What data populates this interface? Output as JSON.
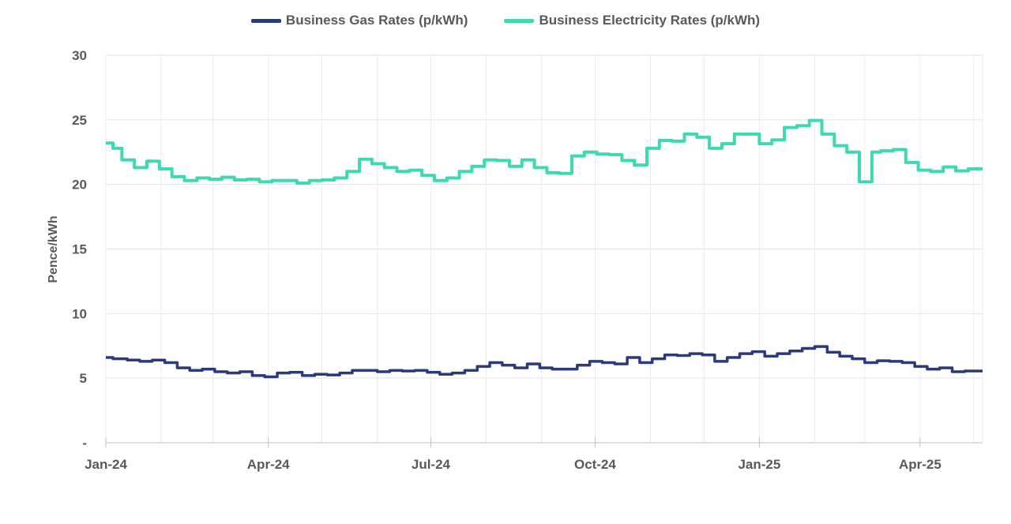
{
  "chart_data": {
    "type": "line",
    "ylabel": "Pence/kWh",
    "ylim": [
      0,
      30
    ],
    "yticks": [
      0,
      5,
      10,
      15,
      20,
      25,
      30
    ],
    "ytick_labels": [
      "-",
      "5",
      "10",
      "15",
      "20",
      "25",
      "30"
    ],
    "x_start": "2024-01-01",
    "x_end": "2025-05-06",
    "xticks": [
      {
        "date": "2024-01-01",
        "label": "Jan-24"
      },
      {
        "date": "2024-04-01",
        "label": "Apr-24"
      },
      {
        "date": "2024-07-01",
        "label": "Jul-24"
      },
      {
        "date": "2024-10-01",
        "label": "Oct-24"
      },
      {
        "date": "2025-01-01",
        "label": "Jan-25"
      },
      {
        "date": "2025-04-01",
        "label": "Apr-25"
      }
    ],
    "grid": "both",
    "legend_position": "top-center",
    "series": [
      {
        "name": "Business Gas Rates (p/kWh)",
        "color": "#2b3a7a",
        "x": [
          "2024-01-01",
          "2024-01-05",
          "2024-01-13",
          "2024-01-20",
          "2024-01-27",
          "2024-02-03",
          "2024-02-10",
          "2024-02-17",
          "2024-02-24",
          "2024-03-02",
          "2024-03-09",
          "2024-03-16",
          "2024-03-23",
          "2024-03-30",
          "2024-04-06",
          "2024-04-13",
          "2024-04-20",
          "2024-04-27",
          "2024-05-04",
          "2024-05-11",
          "2024-05-18",
          "2024-05-25",
          "2024-06-01",
          "2024-06-08",
          "2024-06-15",
          "2024-06-22",
          "2024-06-29",
          "2024-07-06",
          "2024-07-13",
          "2024-07-20",
          "2024-07-27",
          "2024-08-03",
          "2024-08-10",
          "2024-08-17",
          "2024-08-24",
          "2024-08-31",
          "2024-09-07",
          "2024-09-14",
          "2024-09-21",
          "2024-09-28",
          "2024-10-05",
          "2024-10-12",
          "2024-10-19",
          "2024-10-26",
          "2024-11-02",
          "2024-11-09",
          "2024-11-16",
          "2024-11-23",
          "2024-11-30",
          "2024-12-07",
          "2024-12-14",
          "2024-12-21",
          "2024-12-28",
          "2025-01-04",
          "2025-01-11",
          "2025-01-18",
          "2025-01-25",
          "2025-02-01",
          "2025-02-08",
          "2025-02-15",
          "2025-02-22",
          "2025-03-01",
          "2025-03-08",
          "2025-03-15",
          "2025-03-22",
          "2025-03-29",
          "2025-04-05",
          "2025-04-12",
          "2025-04-19",
          "2025-04-26",
          "2025-05-03",
          "2025-05-06"
        ],
        "values": [
          6.6,
          6.5,
          6.4,
          6.3,
          6.4,
          6.2,
          5.8,
          5.6,
          5.7,
          5.5,
          5.4,
          5.5,
          5.2,
          5.1,
          5.4,
          5.45,
          5.2,
          5.3,
          5.25,
          5.4,
          5.6,
          5.6,
          5.5,
          5.6,
          5.55,
          5.6,
          5.45,
          5.3,
          5.4,
          5.6,
          5.9,
          6.2,
          6.0,
          5.8,
          6.1,
          5.8,
          5.7,
          5.7,
          6.0,
          6.3,
          6.2,
          6.1,
          6.6,
          6.2,
          6.5,
          6.8,
          6.75,
          6.9,
          6.8,
          6.3,
          6.6,
          6.9,
          7.05,
          6.7,
          6.9,
          7.1,
          7.3,
          7.45,
          7.0,
          6.7,
          6.5,
          6.2,
          6.35,
          6.3,
          6.2,
          5.9,
          5.7,
          5.8,
          5.5,
          5.55,
          5.55,
          5.55
        ]
      },
      {
        "name": "Business Electricity Rates (p/kWh)",
        "color": "#3dd9b3",
        "x": [
          "2024-01-01",
          "2024-01-05",
          "2024-01-10",
          "2024-01-17",
          "2024-01-24",
          "2024-01-31",
          "2024-02-07",
          "2024-02-14",
          "2024-02-21",
          "2024-02-28",
          "2024-03-06",
          "2024-03-13",
          "2024-03-20",
          "2024-03-27",
          "2024-04-03",
          "2024-04-10",
          "2024-04-17",
          "2024-04-24",
          "2024-05-01",
          "2024-05-08",
          "2024-05-15",
          "2024-05-22",
          "2024-05-29",
          "2024-06-05",
          "2024-06-12",
          "2024-06-19",
          "2024-06-26",
          "2024-07-03",
          "2024-07-10",
          "2024-07-17",
          "2024-07-24",
          "2024-07-31",
          "2024-08-07",
          "2024-08-14",
          "2024-08-21",
          "2024-08-28",
          "2024-09-04",
          "2024-09-11",
          "2024-09-18",
          "2024-09-25",
          "2024-10-02",
          "2024-10-09",
          "2024-10-16",
          "2024-10-23",
          "2024-10-30",
          "2024-11-06",
          "2024-11-13",
          "2024-11-20",
          "2024-11-27",
          "2024-12-04",
          "2024-12-11",
          "2024-12-18",
          "2024-12-25",
          "2025-01-01",
          "2025-01-08",
          "2025-01-15",
          "2025-01-22",
          "2025-01-29",
          "2025-02-05",
          "2025-02-12",
          "2025-02-19",
          "2025-02-26",
          "2025-03-05",
          "2025-03-10",
          "2025-03-17",
          "2025-03-24",
          "2025-03-31",
          "2025-04-07",
          "2025-04-14",
          "2025-04-21",
          "2025-04-28",
          "2025-05-06"
        ],
        "values": [
          23.2,
          22.8,
          21.9,
          21.3,
          21.8,
          21.2,
          20.6,
          20.3,
          20.5,
          20.4,
          20.55,
          20.35,
          20.4,
          20.2,
          20.3,
          20.3,
          20.1,
          20.3,
          20.35,
          20.5,
          21.0,
          21.95,
          21.6,
          21.3,
          21.0,
          21.1,
          20.7,
          20.3,
          20.5,
          21.0,
          21.4,
          21.9,
          21.85,
          21.4,
          21.9,
          21.3,
          20.9,
          20.85,
          22.2,
          22.5,
          22.35,
          22.3,
          21.85,
          21.5,
          22.8,
          23.4,
          23.35,
          23.9,
          23.65,
          22.8,
          23.15,
          23.9,
          23.9,
          23.15,
          23.45,
          24.4,
          24.55,
          24.95,
          23.9,
          23.0,
          22.5,
          20.2,
          22.5,
          22.6,
          22.7,
          21.7,
          21.1,
          21.0,
          21.35,
          21.05,
          21.2,
          21.2
        ]
      }
    ]
  }
}
